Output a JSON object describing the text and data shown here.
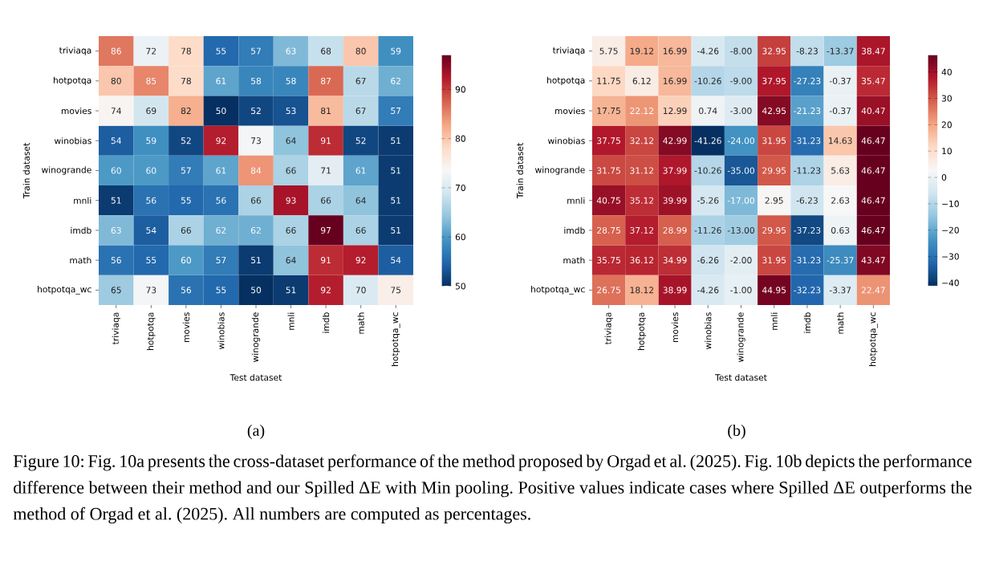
{
  "chart_data": [
    {
      "type": "heatmap",
      "xlabel": "Test dataset",
      "ylabel": "Train dataset",
      "categories": [
        "triviaqa",
        "hotpotqa",
        "movies",
        "winobias",
        "winogrande",
        "mnli",
        "imdb",
        "math",
        "hotpotqa_wc"
      ],
      "y_categories": [
        "triviaqa",
        "hotpotqa",
        "movies",
        "winobias",
        "winogrande",
        "mnli",
        "imdb",
        "math",
        "hotpotqa_wc"
      ],
      "cells": [
        [
          86,
          72,
          78,
          55,
          57,
          63,
          68,
          80,
          59
        ],
        [
          80,
          85,
          78,
          61,
          58,
          58,
          87,
          67,
          62
        ],
        [
          74,
          69,
          82,
          50,
          52,
          53,
          81,
          67,
          57
        ],
        [
          54,
          59,
          52,
          92,
          73,
          64,
          91,
          52,
          51
        ],
        [
          60,
          60,
          57,
          61,
          84,
          66,
          71,
          61,
          51
        ],
        [
          51,
          56,
          55,
          56,
          66,
          93,
          66,
          64,
          51
        ],
        [
          63,
          54,
          66,
          62,
          62,
          66,
          97,
          66,
          51
        ],
        [
          56,
          55,
          60,
          57,
          51,
          64,
          91,
          92,
          54
        ],
        [
          65,
          73,
          56,
          55,
          50,
          51,
          92,
          70,
          75
        ]
      ],
      "clim": [
        50,
        97
      ],
      "cticks": [
        50,
        60,
        70,
        80,
        90
      ],
      "data_labels": true,
      "annotations": [
        "(a)"
      ]
    },
    {
      "type": "heatmap",
      "xlabel": "Test dataset",
      "ylabel": "Train dataset",
      "categories": [
        "triviaqa",
        "hotpotqa",
        "movies",
        "winobias",
        "winogrande",
        "mnli",
        "imdb",
        "math",
        "hotpotqa_wc"
      ],
      "y_categories": [
        "triviaqa",
        "hotpotqa",
        "movies",
        "winobias",
        "winogrande",
        "mnli",
        "imdb",
        "math",
        "hotpotqa_wc"
      ],
      "cells": [
        [
          5.75,
          19.12,
          16.99,
          -4.26,
          -8.0,
          32.95,
          -8.23,
          -13.37,
          38.47
        ],
        [
          11.75,
          6.12,
          16.99,
          -10.26,
          -9.0,
          37.95,
          -27.23,
          -0.37,
          35.47
        ],
        [
          17.75,
          22.12,
          12.99,
          0.74,
          -3.0,
          42.95,
          -21.23,
          -0.37,
          40.47
        ],
        [
          37.75,
          32.12,
          42.99,
          -41.26,
          -24.0,
          31.95,
          -31.23,
          14.63,
          46.47
        ],
        [
          31.75,
          31.12,
          37.99,
          -10.26,
          -35.0,
          29.95,
          -11.23,
          5.63,
          46.47
        ],
        [
          40.75,
          35.12,
          39.99,
          -5.26,
          -17.0,
          2.95,
          -6.23,
          2.63,
          46.47
        ],
        [
          28.75,
          37.12,
          28.99,
          -11.26,
          -13.0,
          29.95,
          -37.23,
          0.63,
          46.47
        ],
        [
          35.75,
          36.12,
          34.99,
          -6.26,
          -2.0,
          31.95,
          -31.23,
          -25.37,
          43.47
        ],
        [
          26.75,
          18.12,
          38.99,
          -4.26,
          -1.0,
          44.95,
          -32.23,
          -3.37,
          22.47
        ]
      ],
      "cell_labels": [
        [
          "5.75",
          "19.12",
          "16.99",
          "-4.26",
          "-8.00",
          "32.95",
          "-8.23",
          "-13.37",
          "38.47"
        ],
        [
          "11.75",
          "6.12",
          "16.99",
          "-10.26",
          "-9.00",
          "37.95",
          "-27.23",
          "-0.37",
          "35.47"
        ],
        [
          "17.75",
          "22.12",
          "12.99",
          "0.74",
          "-3.00",
          "42.95",
          "-21.23",
          "-0.37",
          "40.47"
        ],
        [
          "37.75",
          "32.12",
          "42.99",
          "-41.26",
          "-24.00",
          "31.95",
          "-31.23",
          "14.63",
          "46.47"
        ],
        [
          "31.75",
          "31.12",
          "37.99",
          "-10.26",
          "-35.00",
          "29.95",
          "-11.23",
          "5.63",
          "46.47"
        ],
        [
          "40.75",
          "35.12",
          "39.99",
          "-5.26",
          "-17.00",
          "2.95",
          "-6.23",
          "2.63",
          "46.47"
        ],
        [
          "28.75",
          "37.12",
          "28.99",
          "-11.26",
          "-13.00",
          "29.95",
          "-37.23",
          "0.63",
          "46.47"
        ],
        [
          "35.75",
          "36.12",
          "34.99",
          "-6.26",
          "-2.00",
          "31.95",
          "-31.23",
          "-25.37",
          "43.47"
        ],
        [
          "26.75",
          "18.12",
          "38.99",
          "-4.26",
          "-1.00",
          "44.95",
          "-32.23",
          "-3.37",
          "22.47"
        ]
      ],
      "clim": [
        -41.26,
        46.47
      ],
      "cticks": [
        {
          "value": -40,
          "label": "−40"
        },
        {
          "value": -30,
          "label": "−30"
        },
        {
          "value": -20,
          "label": "−20"
        },
        {
          "value": -10,
          "label": "−10"
        },
        0,
        10,
        20,
        30,
        40
      ],
      "annotations": [
        "(b)",
        "Figure 10: Fig. 10a presents the cross-dataset performance of the method proposed by Orgad et al. (2025). Fig. 10b depicts the performance difference between their method and our Spilled ΔE with Min pooling. Positive values indicate cases where Spilled ΔE outperforms the method of Orgad et al. (2025). All numbers are computed as percentages."
      ]
    }
  ]
}
